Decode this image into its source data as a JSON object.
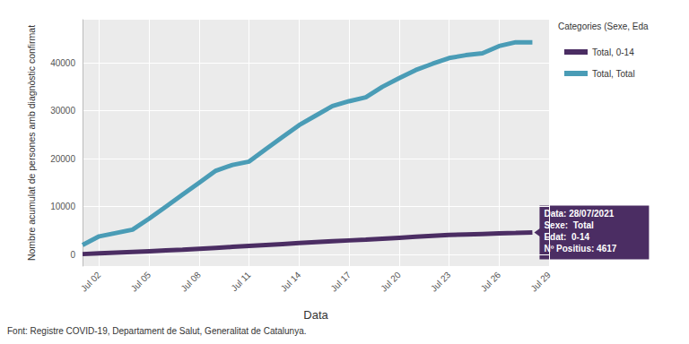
{
  "chart_data": {
    "type": "line",
    "legend_title": "Categories (Sexe, Eda",
    "x_label": "Data",
    "y_label": "Nombre acumulat de persones amb diagnòstic confirmat",
    "source": "Font: Registre COVID-19, Departament de Salut, Generalitat de Catalunya.",
    "categories": [
      null,
      "Jul 02",
      null,
      null,
      "Jul 05",
      null,
      null,
      "Jul 08",
      null,
      null,
      "Jul 11",
      null,
      null,
      "Jul 14",
      null,
      null,
      "Jul 17",
      null,
      null,
      "Jul 20",
      null,
      null,
      "Jul 23",
      null,
      null,
      "Jul 26",
      null,
      null,
      "Jul 29"
    ],
    "series": [
      {
        "name": "Total, 0-14",
        "color": "#4b2d63",
        "values": [
          100,
          250,
          400,
          550,
          700,
          850,
          1000,
          1200,
          1400,
          1600,
          1800,
          2000,
          2200,
          2400,
          2600,
          2800,
          2950,
          3100,
          3300,
          3500,
          3700,
          3900,
          4100,
          4200,
          4300,
          4400,
          4500,
          4617,
          null
        ]
      },
      {
        "name": "Total, Total",
        "color": "#4a9cb6",
        "values": [
          2000,
          3800,
          4500,
          5200,
          7500,
          10000,
          12500,
          15000,
          17500,
          18700,
          19400,
          22000,
          24500,
          27000,
          29000,
          31000,
          32000,
          32800,
          35000,
          36800,
          38500,
          39800,
          41000,
          41600,
          42000,
          43500,
          44300,
          44300,
          null
        ]
      }
    ],
    "ylim": [
      -2400,
      49000
    ],
    "yticks": [
      0,
      10000,
      20000,
      30000,
      40000
    ],
    "grid": true,
    "legend": "right",
    "annotation": {
      "series": "Total, 0-14",
      "lines": [
        "Data: 28/07/2021",
        "Sexe:  Total",
        "Edat:  0-14",
        "Nº Positius: 4617"
      ]
    }
  }
}
